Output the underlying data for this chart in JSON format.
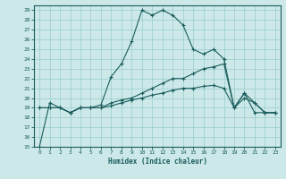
{
  "xlabel": "Humidex (Indice chaleur)",
  "bg_color": "#cce8e8",
  "line_color": "#1a5c5c",
  "grid_color": "#99cccc",
  "xlim": [
    -0.5,
    23.5
  ],
  "ylim": [
    15,
    29.5
  ],
  "yticks": [
    15,
    16,
    17,
    18,
    19,
    20,
    21,
    22,
    23,
    24,
    25,
    26,
    27,
    28,
    29
  ],
  "xticks": [
    0,
    1,
    2,
    3,
    4,
    5,
    6,
    7,
    8,
    9,
    10,
    11,
    12,
    13,
    14,
    15,
    16,
    17,
    18,
    19,
    20,
    21,
    22,
    23
  ],
  "series1_x": [
    0,
    1,
    2,
    3,
    4,
    5,
    6,
    7,
    8,
    9,
    10,
    11,
    12,
    13,
    14,
    15,
    16,
    17,
    18,
    19,
    20,
    21,
    22,
    23
  ],
  "series1_y": [
    15,
    19.5,
    19.0,
    18.5,
    19.0,
    19.0,
    19.3,
    22.2,
    23.5,
    25.8,
    29.0,
    28.5,
    29.0,
    28.5,
    27.5,
    25.0,
    24.5,
    25.0,
    24.0,
    19.0,
    20.5,
    18.5,
    18.5,
    18.5
  ],
  "series2_x": [
    0,
    1,
    2,
    3,
    4,
    5,
    6,
    7,
    8,
    9,
    10,
    11,
    12,
    13,
    14,
    15,
    16,
    17,
    18,
    19,
    20,
    21,
    22,
    23
  ],
  "series2_y": [
    19.0,
    19.0,
    19.0,
    18.5,
    19.0,
    19.0,
    19.0,
    19.5,
    19.8,
    20.0,
    20.5,
    21.0,
    21.5,
    22.0,
    22.0,
    22.5,
    23.0,
    23.2,
    23.5,
    19.0,
    20.5,
    19.5,
    18.5,
    18.5
  ],
  "series3_x": [
    0,
    1,
    2,
    3,
    4,
    5,
    6,
    7,
    8,
    9,
    10,
    11,
    12,
    13,
    14,
    15,
    16,
    17,
    18,
    19,
    20,
    21,
    22,
    23
  ],
  "series3_y": [
    19.0,
    19.0,
    19.0,
    18.5,
    19.0,
    19.0,
    19.0,
    19.2,
    19.5,
    19.8,
    20.0,
    20.3,
    20.5,
    20.8,
    21.0,
    21.0,
    21.2,
    21.3,
    21.0,
    19.0,
    20.0,
    19.5,
    18.5,
    18.5
  ]
}
